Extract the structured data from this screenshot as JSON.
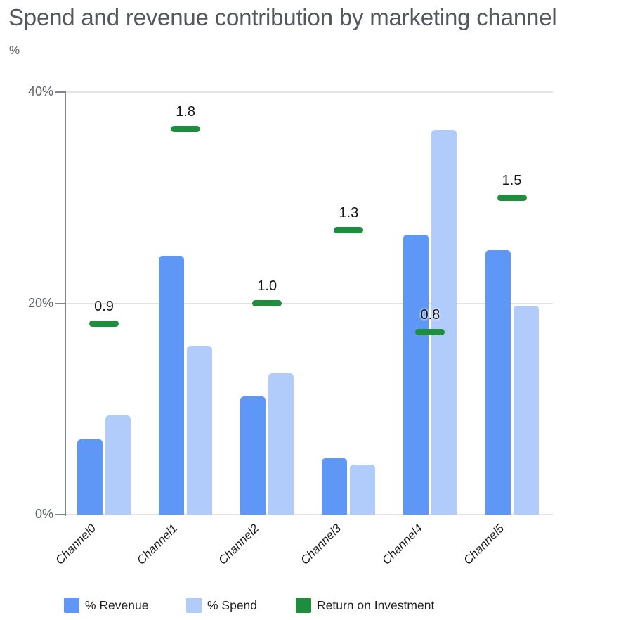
{
  "title": "Spend and revenue contribution by marketing channel",
  "y_axis_unit": "%",
  "colors": {
    "revenue": "#5e97f6",
    "spend": "#b1ccfa",
    "roi": "#1e8e3e",
    "grid": "#e3e3e3",
    "axis": "#80868b",
    "title_text": "#54585c",
    "tick_text": "#5f6368",
    "annotation_text": "#161616"
  },
  "chart_data": {
    "type": "bar",
    "title": "Spend and revenue contribution by marketing channel",
    "xlabel": "",
    "ylabel": "%",
    "ylim": [
      0,
      40
    ],
    "yticks": [
      {
        "label": "0%",
        "value": 0
      },
      {
        "label": "20%",
        "value": 20
      },
      {
        "label": "40%",
        "value": 40
      }
    ],
    "grid": true,
    "legend_position": "bottom",
    "categories": [
      "Channel0",
      "Channel1",
      "Channel2",
      "Channel3",
      "Channel4",
      "Channel5"
    ],
    "series": [
      {
        "name": "% Revenue",
        "type": "bar",
        "values": [
          7.1,
          24.5,
          11.2,
          5.3,
          26.5,
          25.0
        ]
      },
      {
        "name": "% Spend",
        "type": "bar",
        "values": [
          9.4,
          16.0,
          13.4,
          4.7,
          36.4,
          19.8
        ]
      },
      {
        "name": "Return on Investment",
        "type": "marker",
        "values": [
          0.9,
          1.8,
          1.0,
          1.3,
          0.8,
          1.5
        ],
        "labels": [
          "0.9",
          "1.8",
          "1.0",
          "1.3",
          "0.8",
          "1.5"
        ],
        "plotted_pct": [
          18.1,
          36.5,
          20.0,
          26.9,
          17.3,
          30.0
        ]
      }
    ]
  },
  "legend": {
    "items": [
      {
        "label": "% Revenue",
        "color": "#5e97f6"
      },
      {
        "label": "% Spend",
        "color": "#b1ccfa"
      },
      {
        "label": "Return on Investment",
        "color": "#1e8e3e"
      }
    ]
  }
}
